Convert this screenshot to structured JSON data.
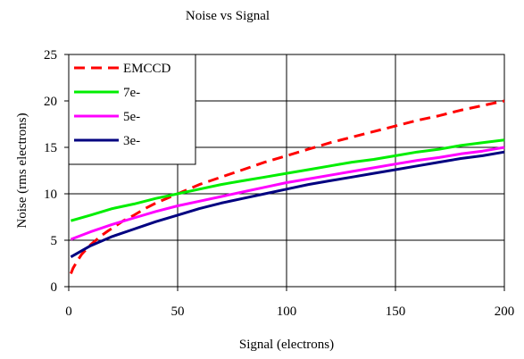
{
  "chart_data": {
    "type": "line",
    "title": "Noise vs Signal",
    "xlabel": "Signal  (electrons)",
    "ylabel": "Noise  (rms electrons)",
    "xlim": [
      0,
      200
    ],
    "ylim": [
      0,
      25
    ],
    "x_ticks": [
      0,
      50,
      100,
      150,
      200
    ],
    "y_ticks": [
      0,
      5,
      10,
      15,
      20,
      25
    ],
    "grid": true,
    "legend_position": "top-left",
    "series": [
      {
        "name": "EMCCD",
        "color": "#ff0000",
        "dash": "dashed",
        "x": [
          1,
          2,
          4,
          6,
          8,
          10,
          12,
          15,
          18,
          20,
          25,
          30,
          35,
          40,
          45,
          50,
          60,
          70,
          80,
          90,
          100,
          110,
          120,
          130,
          140,
          150,
          160,
          170,
          180,
          190,
          200
        ],
        "y": [
          1.4,
          2.0,
          2.8,
          3.5,
          4.0,
          4.5,
          4.9,
          5.5,
          6.0,
          6.3,
          7.1,
          7.7,
          8.4,
          9.0,
          9.5,
          10.0,
          11.0,
          11.8,
          12.6,
          13.4,
          14.1,
          14.8,
          15.5,
          16.1,
          16.7,
          17.3,
          17.9,
          18.4,
          19.0,
          19.5,
          20.0
        ]
      },
      {
        "name": "7e-",
        "color": "#00ee00",
        "dash": "solid",
        "x": [
          1,
          10,
          20,
          30,
          40,
          50,
          60,
          70,
          80,
          90,
          100,
          110,
          120,
          130,
          140,
          150,
          160,
          170,
          180,
          190,
          200
        ],
        "y": [
          7.1,
          7.7,
          8.4,
          8.9,
          9.5,
          10.0,
          10.5,
          11.0,
          11.4,
          11.8,
          12.2,
          12.6,
          13.0,
          13.4,
          13.7,
          14.1,
          14.5,
          14.8,
          15.2,
          15.5,
          15.8
        ]
      },
      {
        "name": "5e-",
        "color": "#ff00ff",
        "dash": "solid",
        "x": [
          1,
          10,
          20,
          30,
          40,
          50,
          60,
          70,
          80,
          90,
          100,
          110,
          120,
          130,
          140,
          150,
          160,
          170,
          180,
          190,
          200
        ],
        "y": [
          5.1,
          5.9,
          6.7,
          7.4,
          8.1,
          8.7,
          9.2,
          9.7,
          10.2,
          10.7,
          11.2,
          11.6,
          12.0,
          12.4,
          12.8,
          13.2,
          13.6,
          13.9,
          14.3,
          14.6,
          15.0
        ]
      },
      {
        "name": "3e-",
        "color": "#000080",
        "dash": "solid",
        "x": [
          1,
          10,
          20,
          30,
          40,
          50,
          60,
          70,
          80,
          90,
          100,
          110,
          120,
          130,
          140,
          150,
          160,
          170,
          180,
          190,
          200
        ],
        "y": [
          3.2,
          4.4,
          5.4,
          6.2,
          7.0,
          7.7,
          8.4,
          9.0,
          9.5,
          10.0,
          10.5,
          11.0,
          11.4,
          11.8,
          12.2,
          12.6,
          13.0,
          13.4,
          13.8,
          14.1,
          14.5
        ]
      }
    ]
  }
}
